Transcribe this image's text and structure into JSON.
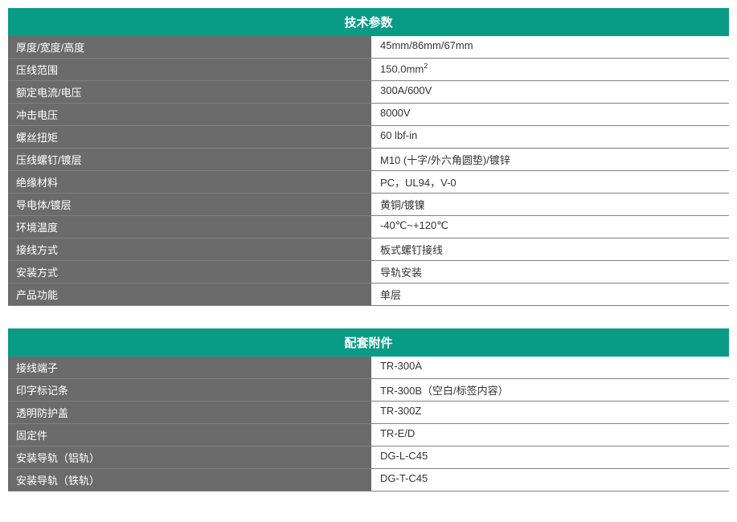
{
  "tables": [
    {
      "title": "技术参数",
      "rows": [
        {
          "label": "厚度/宽度/高度",
          "value": "45mm/86mm/67mm"
        },
        {
          "label": "压线范围",
          "value": "150.0mm²"
        },
        {
          "label": "额定电流/电压",
          "value": "300A/600V"
        },
        {
          "label": "冲击电压",
          "value": "8000V"
        },
        {
          "label": "螺丝扭矩",
          "value": "60 lbf-in"
        },
        {
          "label": "压线螺钉/镀层",
          "value": "M10 (十字/外六角圆垫)/镀锌"
        },
        {
          "label": "绝缘材料",
          "value": "PC，UL94，V-0"
        },
        {
          "label": "导电体/镀层",
          "value": "黄铜/镀镍"
        },
        {
          "label": "环境温度",
          "value": "-40℃~+120℃"
        },
        {
          "label": "接线方式",
          "value": "板式螺钉接线"
        },
        {
          "label": "安装方式",
          "value": "导轨安装"
        },
        {
          "label": "产品功能",
          "value": "单层"
        }
      ]
    },
    {
      "title": "配套附件",
      "rows": [
        {
          "label": "接线端子",
          "value": "TR-300A"
        },
        {
          "label": "印字标记条",
          "value": "TR-300B（空白/标签内容）"
        },
        {
          "label": "透明防护盖",
          "value": "TR-300Z"
        },
        {
          "label": "固定件",
          "value": "TR-E/D"
        },
        {
          "label": "安装导轨（铝轨）",
          "value": "DG-L-C45"
        },
        {
          "label": "安装导轨（铁轨）",
          "value": "DG-T-C45"
        }
      ]
    }
  ],
  "styling": {
    "header_bg": "#0a9b87",
    "header_text": "#ffffff",
    "label_bg": "#6b6b6b",
    "label_text": "#ffffff",
    "value_bg": "#ffffff",
    "value_text": "#333333",
    "border_color": "#808080",
    "header_fontsize": 15,
    "cell_fontsize": 13,
    "label_width_pct": 50.5,
    "value_width_pct": 49.5
  }
}
